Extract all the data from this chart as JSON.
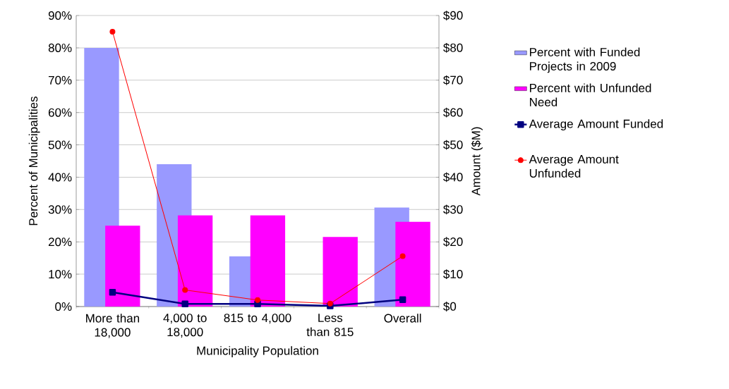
{
  "chart_data": {
    "type": "bar",
    "xlabel": "Municipality Population",
    "ylabel": "Percent of Municipalities",
    "y2label": "Amount ($M)",
    "categories": [
      "More than 18,000",
      "4,000 to 18,000",
      "815 to 4,000",
      "Less than 815",
      "Overall"
    ],
    "series": [
      {
        "name": "Percent with Funded Projects in 2009",
        "color": "#9999ff",
        "values": [
          80,
          44,
          15.5,
          0,
          30.6
        ]
      },
      {
        "name": "Percent with Unfunded Need",
        "color": "#ff00ff",
        "values": [
          25,
          28.2,
          28.2,
          21.5,
          26.2
        ]
      },
      {
        "name": "Average Amount Funded",
        "type": "line",
        "axis": "y2",
        "color": "#000080",
        "marker": "square",
        "values": [
          4.4,
          0.8,
          0.8,
          0.2,
          2.1
        ]
      },
      {
        "name": "Average Amount Unfunded",
        "type": "line",
        "axis": "y2",
        "color": "#ff0000",
        "marker": "circle",
        "values": [
          85,
          5.1,
          2,
          0.9,
          15.6
        ]
      }
    ],
    "ylim": [
      0,
      90
    ],
    "yticks": [
      {
        "value": 0,
        "label": "0%"
      },
      {
        "value": 10,
        "label": "10%"
      },
      {
        "value": 20,
        "label": "20%"
      },
      {
        "value": 30,
        "label": "30%"
      },
      {
        "value": 40,
        "label": "40%"
      },
      {
        "value": 50,
        "label": "50%"
      },
      {
        "value": 60,
        "label": "60%"
      },
      {
        "value": 70,
        "label": "70%"
      },
      {
        "value": 80,
        "label": "80%"
      },
      {
        "value": 90,
        "label": "90%"
      }
    ],
    "y2lim": [
      0,
      90
    ],
    "y2ticks": [
      {
        "value": 0,
        "label": "$0"
      },
      {
        "value": 10,
        "label": "$10"
      },
      {
        "value": 20,
        "label": "$20"
      },
      {
        "value": 30,
        "label": "$30"
      },
      {
        "value": 40,
        "label": "$40"
      },
      {
        "value": 50,
        "label": "$50"
      },
      {
        "value": 60,
        "label": "$60"
      },
      {
        "value": 70,
        "label": "$70"
      },
      {
        "value": 80,
        "label": "$80"
      },
      {
        "value": 90,
        "label": "$90"
      }
    ],
    "grid": "y",
    "legend": "right"
  }
}
